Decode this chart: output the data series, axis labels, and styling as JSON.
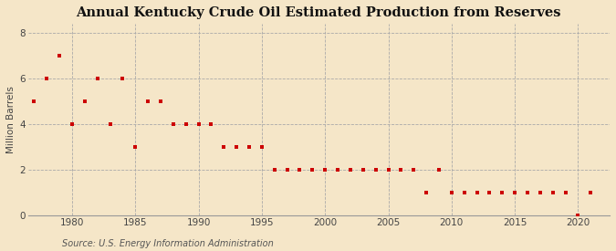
{
  "title": "Annual Kentucky Crude Oil Estimated Production from Reserves",
  "ylabel": "Million Barrels",
  "source": "Source: U.S. Energy Information Administration",
  "background_color": "#f5e6c8",
  "plot_background": "#f5e6c8",
  "marker_color": "#cc0000",
  "marker": "s",
  "marker_size": 3.5,
  "xlim": [
    1976.5,
    2022.5
  ],
  "ylim": [
    0,
    8.4
  ],
  "yticks": [
    0,
    2,
    4,
    6,
    8
  ],
  "xticks": [
    1980,
    1985,
    1990,
    1995,
    2000,
    2005,
    2010,
    2015,
    2020
  ],
  "years": [
    1977,
    1978,
    1979,
    1980,
    1981,
    1982,
    1983,
    1984,
    1985,
    1986,
    1987,
    1988,
    1989,
    1990,
    1991,
    1992,
    1993,
    1994,
    1995,
    1996,
    1997,
    1998,
    1999,
    2000,
    2001,
    2002,
    2003,
    2004,
    2005,
    2006,
    2007,
    2008,
    2009,
    2010,
    2011,
    2012,
    2013,
    2014,
    2015,
    2016,
    2017,
    2018,
    2019,
    2020,
    2021
  ],
  "values": [
    5,
    6,
    7,
    4,
    5,
    6,
    4,
    6,
    3,
    5,
    5,
    4,
    4,
    4,
    4,
    3,
    3,
    3,
    3,
    2,
    2,
    2,
    2,
    2,
    2,
    2,
    2,
    2,
    2,
    2,
    2,
    1,
    2,
    1,
    1,
    1,
    1,
    1,
    1,
    1,
    1,
    1,
    1,
    0,
    1
  ],
  "title_fontsize": 10.5,
  "ylabel_fontsize": 7.5,
  "tick_fontsize": 7.5,
  "source_fontsize": 7
}
